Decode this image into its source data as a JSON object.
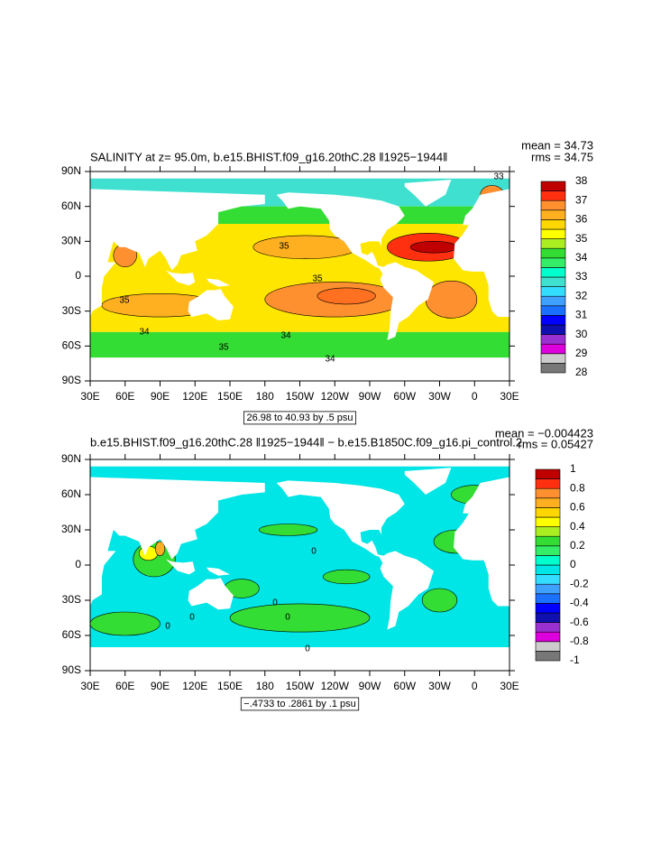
{
  "chart_data": [
    {
      "type": "contour-map",
      "title": "SALINITY at z=  95.0m, b.e15.BHIST.f09_g16.20thC.28 ‖1925−1944‖",
      "mean_label": "mean = 34.73",
      "rms_label": "rms = 34.75",
      "info_label": "26.98 to 40.93 by .5 psu",
      "xlim": [
        30,
        390
      ],
      "ylim": [
        -90,
        90
      ],
      "xticks": [
        {
          "value": 30,
          "label": "30E"
        },
        {
          "value": 60,
          "label": "60E"
        },
        {
          "value": 90,
          "label": "90E"
        },
        {
          "value": 120,
          "label": "120E"
        },
        {
          "value": 150,
          "label": "150E"
        },
        {
          "value": 180,
          "label": "180"
        },
        {
          "value": 210,
          "label": "150W"
        },
        {
          "value": 240,
          "label": "120W"
        },
        {
          "value": 270,
          "label": "90W"
        },
        {
          "value": 300,
          "label": "60W"
        },
        {
          "value": 330,
          "label": "30W"
        },
        {
          "value": 360,
          "label": "0"
        },
        {
          "value": 390,
          "label": "30E"
        }
      ],
      "yticks": [
        {
          "value": 90,
          "label": "90N"
        },
        {
          "value": 60,
          "label": "60N"
        },
        {
          "value": 30,
          "label": "30N"
        },
        0,
        {
          "value": -30,
          "label": "30S"
        },
        {
          "value": -60,
          "label": "60S"
        },
        {
          "value": -90,
          "label": "90S"
        }
      ],
      "contour_labels": [
        35,
        35,
        35,
        35,
        34,
        34,
        34,
        33
      ],
      "colorbar": {
        "ticks": [
          38,
          37,
          36,
          35,
          34,
          33,
          32,
          31,
          30,
          29,
          28
        ],
        "colors": [
          "#777777",
          "#cccccc",
          "#dd00dd",
          "#9b30d0",
          "#1010b0",
          "#0000ff",
          "#1c70ff",
          "#3fa0ff",
          "#33ddff",
          "#40e0d0",
          "#00ffcc",
          "#33ee66",
          "#33dd33",
          "#aaee22",
          "#ffff00",
          "#ffd700",
          "#ffb020",
          "#ff9030",
          "#ff3010",
          "#c00000"
        ]
      }
    },
    {
      "type": "contour-map",
      "title": "b.e15.BHIST.f09_g16.20thC.28 ‖1925−1944‖ − b.e15.B1850C.f09_g16.pi_control.2",
      "mean_label": "mean = −0.004423",
      "rms_label": "rms = 0.05427",
      "info_label": "−.4733 to .2861 by .1 psu",
      "xlim": [
        30,
        390
      ],
      "ylim": [
        -90,
        90
      ],
      "xticks": [
        {
          "value": 30,
          "label": "30E"
        },
        {
          "value": 60,
          "label": "60E"
        },
        {
          "value": 90,
          "label": "90E"
        },
        {
          "value": 120,
          "label": "120E"
        },
        {
          "value": 150,
          "label": "150E"
        },
        {
          "value": 180,
          "label": "180"
        },
        {
          "value": 210,
          "label": "150W"
        },
        {
          "value": 240,
          "label": "120W"
        },
        {
          "value": 270,
          "label": "90W"
        },
        {
          "value": 300,
          "label": "60W"
        },
        {
          "value": 330,
          "label": "30W"
        },
        {
          "value": 360,
          "label": "0"
        },
        {
          "value": 390,
          "label": "30E"
        }
      ],
      "yticks": [
        {
          "value": 90,
          "label": "90N"
        },
        {
          "value": 60,
          "label": "60N"
        },
        {
          "value": 30,
          "label": "30N"
        },
        0,
        {
          "value": -30,
          "label": "30S"
        },
        {
          "value": -60,
          "label": "60S"
        },
        {
          "value": -90,
          "label": "90S"
        }
      ],
      "contour_labels": [
        0,
        0,
        0,
        0,
        0,
        0
      ],
      "colorbar": {
        "ticks": [
          1,
          0.8,
          0.6,
          0.4,
          0.2,
          0,
          -0.2,
          -0.4,
          -0.6,
          -0.8,
          -1
        ],
        "colors": [
          "#777777",
          "#cccccc",
          "#dd00dd",
          "#9b30d0",
          "#1010b0",
          "#0000ff",
          "#1c70ff",
          "#3fa0ff",
          "#33ddff",
          "#00e5e5",
          "#00ffcc",
          "#33ee66",
          "#33dd33",
          "#aaee22",
          "#ffff00",
          "#ffd700",
          "#ffb020",
          "#ff9030",
          "#ff3010",
          "#c00000"
        ]
      }
    }
  ]
}
